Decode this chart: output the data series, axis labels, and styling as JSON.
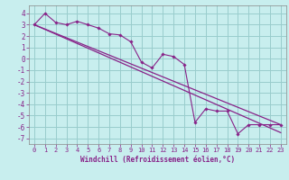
{
  "hours": [
    0,
    1,
    2,
    3,
    4,
    5,
    6,
    7,
    8,
    9,
    10,
    11,
    12,
    13,
    14,
    15,
    16,
    17,
    18,
    19,
    20,
    21,
    22,
    23
  ],
  "windchill": [
    3.0,
    4.0,
    3.2,
    3.0,
    3.3,
    3.0,
    2.7,
    2.2,
    2.1,
    1.5,
    -0.3,
    -0.8,
    0.4,
    0.2,
    -0.5,
    -5.6,
    -4.4,
    -4.6,
    -4.6,
    -6.6,
    -5.8,
    -5.8,
    -5.8,
    -5.8
  ],
  "reg_upper_y0": 3.0,
  "reg_upper_y1": -5.8,
  "reg_lower_y0": 3.0,
  "reg_lower_y1": -6.5,
  "line_color": "#882288",
  "bg_color": "#c8eeee",
  "grid_color": "#99cccc",
  "xlabel": "Windchill (Refroidissement éolien,°C)",
  "ylabel_ticks": [
    4,
    3,
    2,
    1,
    0,
    -1,
    -2,
    -3,
    -4,
    -5,
    -6,
    -7
  ],
  "xlim": [
    -0.5,
    23.5
  ],
  "ylim": [
    -7.5,
    4.7
  ],
  "xticks": [
    0,
    1,
    2,
    3,
    4,
    5,
    6,
    7,
    8,
    9,
    10,
    11,
    12,
    13,
    14,
    15,
    16,
    17,
    18,
    19,
    20,
    21,
    22,
    23
  ],
  "tick_fontsize": 5.0,
  "xlabel_fontsize": 5.5
}
